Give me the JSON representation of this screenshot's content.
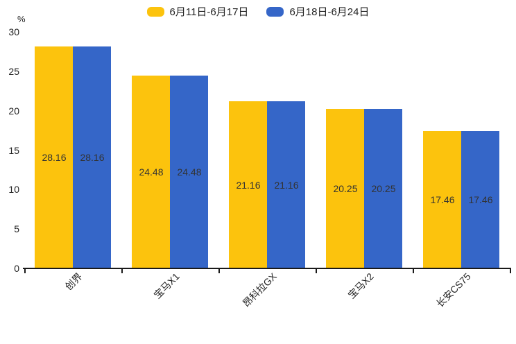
{
  "chart_data": {
    "type": "bar",
    "unit_label": "%",
    "categories": [
      "创界",
      "宝马X1",
      "昂科拉GX",
      "宝马X2",
      "长安CS75"
    ],
    "series": [
      {
        "name": "6月11日-6月17日",
        "color": "#FCC30D",
        "values": [
          28.16,
          24.48,
          21.16,
          20.25,
          17.46
        ]
      },
      {
        "name": "6月18日-6月24日",
        "color": "#3566C8",
        "values": [
          28.16,
          24.48,
          21.16,
          20.25,
          17.46
        ]
      }
    ],
    "ylim": [
      0,
      30
    ],
    "yticks": [
      0,
      5,
      10,
      15,
      20,
      25,
      30
    ],
    "grid": false,
    "legend_position": "top",
    "value_label_decimals": 2,
    "value_label_color": "#333333",
    "axis_color": "#1a1a1a"
  }
}
